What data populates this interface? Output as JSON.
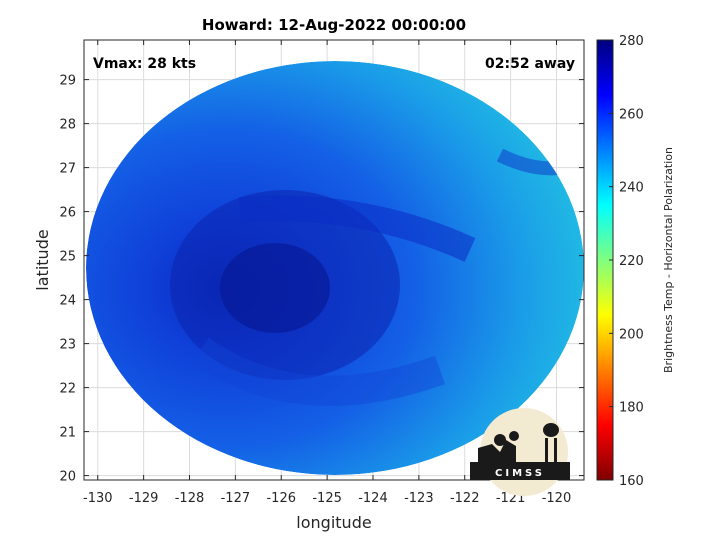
{
  "title": "Howard: 12-Aug-2022 00:00:00",
  "vmax_label": "Vmax: 28 kts",
  "away_label": "02:52 away",
  "xlabel": "longitude",
  "ylabel": "latitude",
  "colorbar_label": "Brightness Temp - Horizontal Polarization",
  "logo_text": "CIMSS",
  "chart_data": {
    "type": "heatmap",
    "title": "Howard: 12-Aug-2022 00:00:00",
    "xlabel": "longitude",
    "ylabel": "latitude",
    "xlim": [
      -130.3,
      -119.4
    ],
    "ylim": [
      19.9,
      29.9
    ],
    "xticks": [
      -130,
      -129,
      -128,
      -127,
      -126,
      -125,
      -124,
      -123,
      -122,
      -121,
      -120
    ],
    "yticks": [
      20,
      21,
      22,
      23,
      24,
      25,
      26,
      27,
      28,
      29
    ],
    "grid": true,
    "colorbar": {
      "label": "Brightness Temp - Horizontal Polarization",
      "range": [
        160,
        280
      ],
      "ticks": [
        160,
        180,
        200,
        220,
        240,
        260,
        280
      ],
      "colormap": "jet"
    },
    "swath_center": [
      -124.9,
      24.7
    ],
    "storm_center": [
      -125.8,
      24.5
    ],
    "storm_core_temp": 275,
    "background_temp": 240
  }
}
